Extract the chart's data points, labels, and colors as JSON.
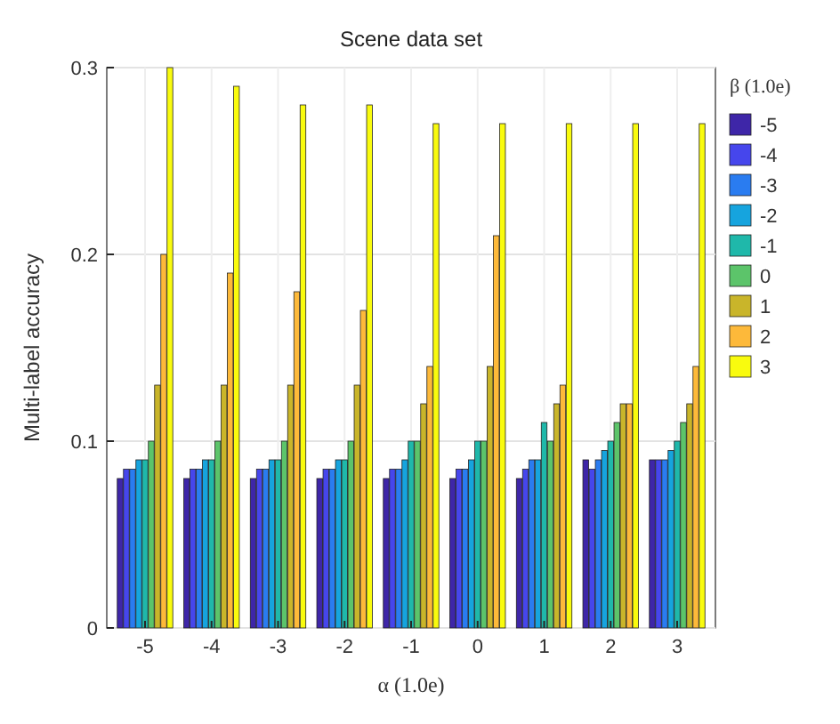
{
  "chart_data": {
    "type": "bar",
    "title": "Scene data set",
    "xlabel": "α (1.0e)",
    "ylabel": "Multi-label accuracy",
    "legend_title": "β (1.0e)",
    "categories": [
      "-5",
      "-4",
      "-3",
      "-2",
      "-1",
      "0",
      "1",
      "2",
      "3"
    ],
    "series": [
      {
        "name": "-5",
        "color": "#3e26a8",
        "values": [
          0.08,
          0.08,
          0.08,
          0.08,
          0.08,
          0.08,
          0.08,
          0.09,
          0.09
        ]
      },
      {
        "name": "-4",
        "color": "#4646ec",
        "values": [
          0.085,
          0.085,
          0.085,
          0.085,
          0.085,
          0.085,
          0.085,
          0.085,
          0.09
        ]
      },
      {
        "name": "-3",
        "color": "#2a7cf0",
        "values": [
          0.085,
          0.085,
          0.085,
          0.085,
          0.085,
          0.085,
          0.09,
          0.09,
          0.09
        ]
      },
      {
        "name": "-2",
        "color": "#16a4de",
        "values": [
          0.09,
          0.09,
          0.09,
          0.09,
          0.09,
          0.09,
          0.09,
          0.095,
          0.095
        ]
      },
      {
        "name": "-1",
        "color": "#1fb8aa",
        "values": [
          0.09,
          0.09,
          0.09,
          0.09,
          0.1,
          0.1,
          0.11,
          0.1,
          0.1
        ]
      },
      {
        "name": "0",
        "color": "#5cc46a",
        "values": [
          0.1,
          0.1,
          0.1,
          0.1,
          0.1,
          0.1,
          0.1,
          0.11,
          0.11
        ]
      },
      {
        "name": "1",
        "color": "#c9b52a",
        "values": [
          0.13,
          0.13,
          0.13,
          0.13,
          0.12,
          0.14,
          0.12,
          0.12,
          0.12
        ]
      },
      {
        "name": "2",
        "color": "#fdb93a",
        "values": [
          0.2,
          0.19,
          0.18,
          0.17,
          0.14,
          0.21,
          0.13,
          0.12,
          0.14
        ]
      },
      {
        "name": "3",
        "color": "#f9fb0e",
        "values": [
          0.3,
          0.29,
          0.28,
          0.28,
          0.27,
          0.27,
          0.27,
          0.27,
          0.27
        ]
      }
    ],
    "ylim": [
      0,
      0.3
    ],
    "yticks": [
      0,
      0.1,
      0.2,
      0.3
    ],
    "grid": true,
    "legend": "right"
  }
}
